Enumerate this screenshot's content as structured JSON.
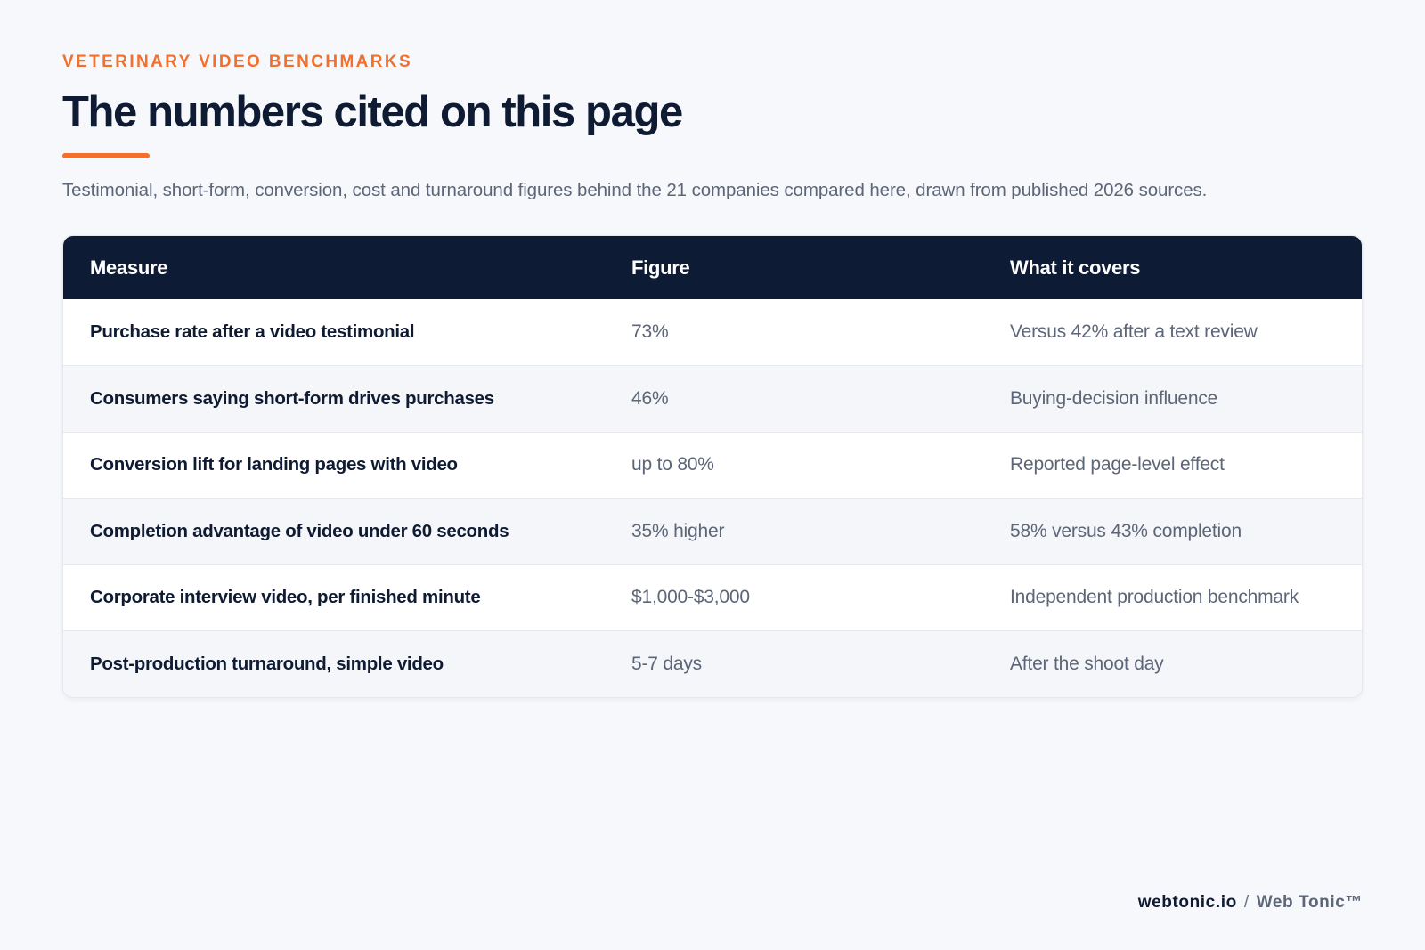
{
  "header": {
    "eyebrow": "VETERINARY VIDEO BENCHMARKS",
    "title": "The numbers cited on this page",
    "subtitle": "Testimonial, short-form, conversion, cost and turnaround figures behind the 21 companies compared here, drawn from published 2026 sources."
  },
  "table": {
    "columns": [
      "Measure",
      "Figure",
      "What it covers"
    ],
    "rows": [
      {
        "measure": "Purchase rate after a video testimonial",
        "figure": "73%",
        "covers": "Versus 42% after a text review"
      },
      {
        "measure": "Consumers saying short-form drives purchases",
        "figure": "46%",
        "covers": "Buying-decision influence"
      },
      {
        "measure": "Conversion lift for landing pages with video",
        "figure": "up to 80%",
        "covers": "Reported page-level effect"
      },
      {
        "measure": "Completion advantage of video under 60 seconds",
        "figure": "35% higher",
        "covers": "58% versus 43% completion"
      },
      {
        "measure": "Corporate interview video, per finished minute",
        "figure": "$1,000-$3,000",
        "covers": "Independent production benchmark"
      },
      {
        "measure": "Post-production turnaround, simple video",
        "figure": "5-7 days",
        "covers": "After the shoot day"
      }
    ]
  },
  "footer": {
    "domain": "webtonic.io",
    "separator": "/",
    "brand": "Web Tonic™"
  },
  "colors": {
    "accent": "#f26f2e",
    "navy": "#0d1b35",
    "text_muted": "#5d6678",
    "background": "#f6f8fb"
  }
}
